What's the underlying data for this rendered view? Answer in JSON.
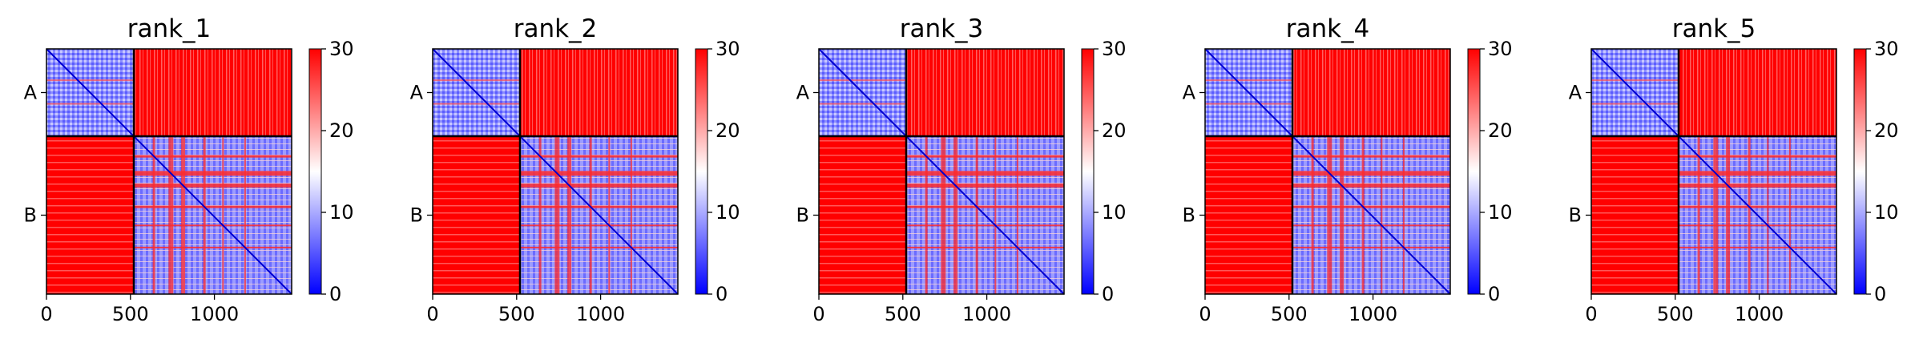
{
  "chart_data": {
    "type": "heatmap",
    "colormap": {
      "name": "bwr",
      "low": "#0000ff",
      "mid": "#ffffff",
      "high": "#ff0000"
    },
    "colorbar": {
      "min": 0,
      "max": 30,
      "ticks": [
        "0",
        "10",
        "20",
        "30"
      ]
    },
    "x_ticks": [
      {
        "value": 0,
        "label": "0"
      },
      {
        "value": 500,
        "label": "500"
      },
      {
        "value": 1000,
        "label": "1000"
      }
    ],
    "x_range": [
      0,
      1460
    ],
    "chain_boundary": 520,
    "chains": [
      {
        "label": "A",
        "center": 260
      },
      {
        "label": "B",
        "center": 990
      }
    ],
    "divider_color": "#000000",
    "panels": [
      {
        "title": "rank_1"
      },
      {
        "title": "rank_2"
      },
      {
        "title": "rank_3"
      },
      {
        "title": "rank_4"
      },
      {
        "title": "rank_5"
      }
    ]
  }
}
